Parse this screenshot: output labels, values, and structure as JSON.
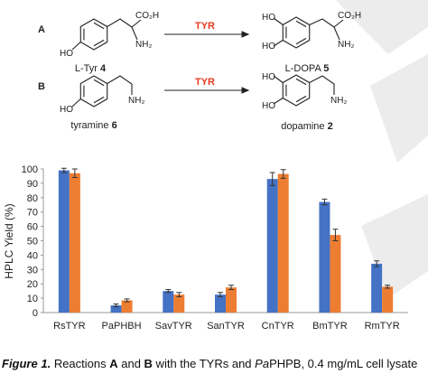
{
  "scheme": {
    "reactions": [
      {
        "letter": "A",
        "enzyme": "TYR",
        "substrate": {
          "name": "L-Tyr",
          "number": "4",
          "atoms": [
            "HO",
            "NH₂",
            "CO₂H"
          ]
        },
        "product": {
          "name": "L-DOPA",
          "number": "5",
          "atoms": [
            "HO",
            "HO",
            "NH₂",
            "CO₂H"
          ]
        }
      },
      {
        "letter": "B",
        "enzyme": "TYR",
        "substrate": {
          "name": "tyramine",
          "number": "6",
          "atoms": [
            "HO",
            "NH₂"
          ]
        },
        "product": {
          "name": "dopamine",
          "number": "2",
          "atoms": [
            "HO",
            "HO",
            "NH₂"
          ]
        }
      }
    ]
  },
  "chart_data": {
    "type": "bar",
    "ylabel": "HPLC Yield (%)",
    "categories": [
      "RsTYR",
      "PaPHBH",
      "SavTYR",
      "SanTYR",
      "CnTYR",
      "BmTYR",
      "RmTYR"
    ],
    "series": [
      {
        "color": "#4472c4",
        "values": [
          99,
          5,
          15,
          12.5,
          93,
          77,
          34
        ],
        "errors": [
          1.5,
          1,
          1,
          1.5,
          4.5,
          2,
          2
        ]
      },
      {
        "color": "#ed7d31",
        "values": [
          97,
          8.5,
          12.5,
          17.5,
          96.5,
          54,
          18
        ],
        "errors": [
          3,
          1,
          1.5,
          1.5,
          3,
          4,
          1
        ]
      }
    ],
    "ylim": [
      0,
      100
    ],
    "yticks": [
      0,
      10,
      20,
      30,
      40,
      50,
      60,
      70,
      80,
      90,
      100
    ]
  },
  "caption": {
    "label": "Figure 1.",
    "segments": [
      "Reactions ",
      "A",
      " and ",
      "B",
      " with the TYRs and ",
      "Pa",
      "PHPB, 0.4 mg/mL cell lysate"
    ]
  }
}
